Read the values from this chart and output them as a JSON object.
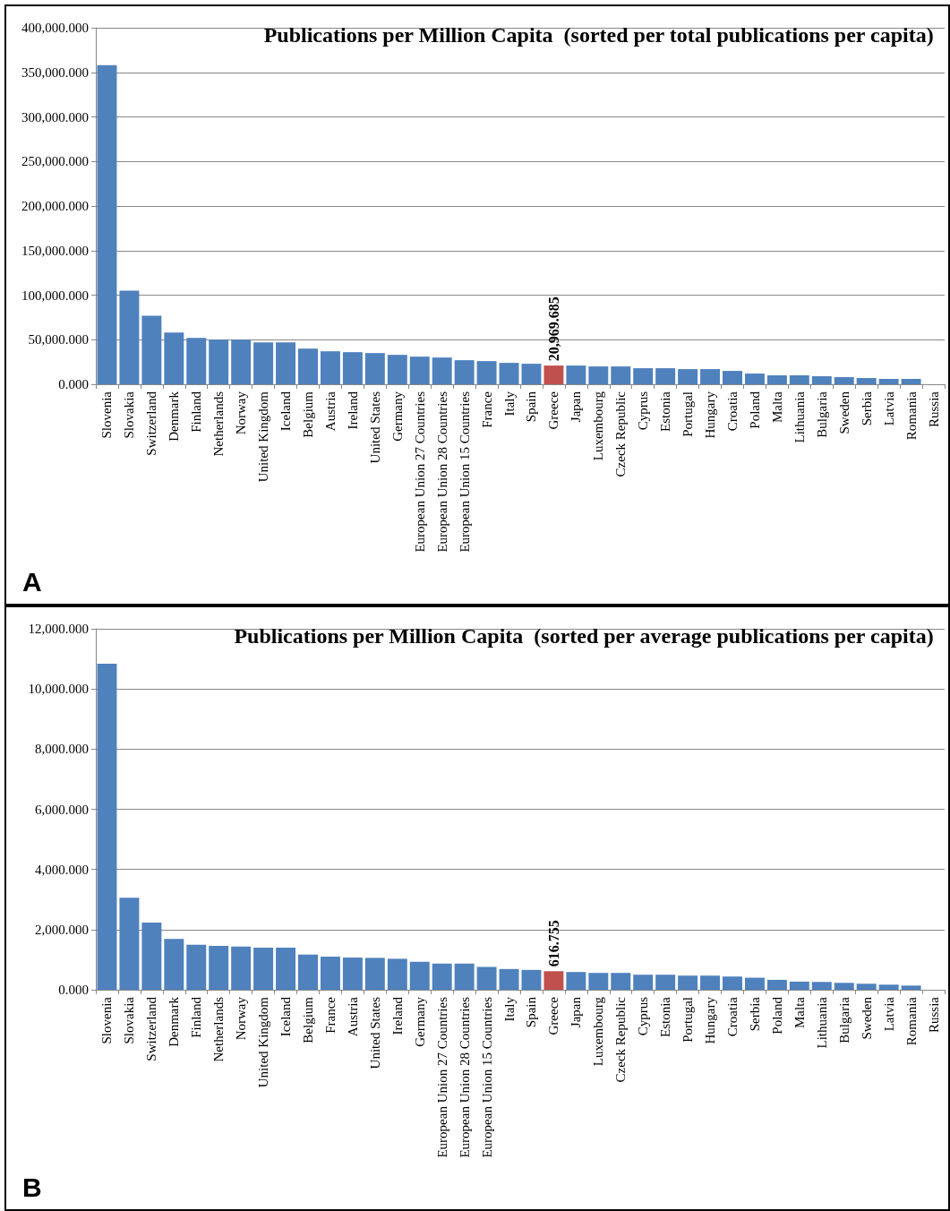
{
  "chart_data": [
    {
      "type": "bar",
      "title": "Publications per Million Capita  (sorted per total publications per capita)",
      "annotations": [
        "A"
      ],
      "categories": [
        "Slovenia",
        "Slovakia",
        "Switzerland",
        "Denmark",
        "Finland",
        "Netherlands",
        "Norway",
        "United Kingdom",
        "Iceland",
        "Belgium",
        "Austria",
        "Ireland",
        "United States",
        "Germany",
        "European Union 27 Countries",
        "European Union 28 Countries",
        "European Union 15 Countries",
        "France",
        "Italy",
        "Spain",
        "Greece",
        "Japan",
        "Luxembourg",
        "Czeck Republic",
        "Cyprus",
        "Estonia",
        "Portugal",
        "Hungary",
        "Croatia",
        "Poland",
        "Malta",
        "Lithuania",
        "Bulgaria",
        "Sweden",
        "Serbia",
        "Latvia",
        "Romania",
        "Russia"
      ],
      "values": [
        358000,
        105000,
        77000,
        58000,
        52000,
        50000,
        50000,
        47000,
        47000,
        40000,
        37000,
        36000,
        35000,
        33000,
        31000,
        30000,
        27000,
        26000,
        24000,
        23000,
        20969.685,
        21000,
        20000,
        20000,
        18000,
        18000,
        17000,
        17000,
        15000,
        12000,
        10000,
        10000,
        9000,
        8000,
        7000,
        6000,
        6000,
        null
      ],
      "colors": [
        "#4f81bd",
        "#4f81bd",
        "#4f81bd",
        "#4f81bd",
        "#4f81bd",
        "#4f81bd",
        "#4f81bd",
        "#4f81bd",
        "#4f81bd",
        "#4f81bd",
        "#4f81bd",
        "#4f81bd",
        "#4f81bd",
        "#4f81bd",
        "#4f81bd",
        "#4f81bd",
        "#4f81bd",
        "#4f81bd",
        "#4f81bd",
        "#4f81bd",
        "#c0504d",
        "#4f81bd",
        "#4f81bd",
        "#4f81bd",
        "#4f81bd",
        "#4f81bd",
        "#4f81bd",
        "#4f81bd",
        "#4f81bd",
        "#4f81bd",
        "#4f81bd",
        "#4f81bd",
        "#4f81bd",
        "#4f81bd",
        "#4f81bd",
        "#4f81bd",
        "#4f81bd",
        "#4f81bd"
      ],
      "value_labels": [
        null,
        null,
        null,
        null,
        null,
        null,
        null,
        null,
        null,
        null,
        null,
        null,
        null,
        null,
        null,
        null,
        null,
        null,
        null,
        null,
        "20,969.685",
        null,
        null,
        null,
        null,
        null,
        null,
        null,
        null,
        null,
        null,
        null,
        null,
        null,
        null,
        null,
        null,
        null
      ],
      "ylim": [
        0,
        400000
      ],
      "yticks": [
        {
          "value": 0,
          "label": "0.000"
        },
        {
          "value": 50000,
          "label": "50,000.000"
        },
        {
          "value": 100000,
          "label": "100,000.000"
        },
        {
          "value": 150000,
          "label": "150,000.000"
        },
        {
          "value": 200000,
          "label": "200,000.000"
        },
        {
          "value": 250000,
          "label": "250,000.000"
        },
        {
          "value": 300000,
          "label": "300,000.000"
        },
        {
          "value": 350000,
          "label": "350,000.000"
        },
        {
          "value": 400000,
          "label": "400,000.000"
        }
      ],
      "grid": "y"
    },
    {
      "type": "bar",
      "title": "Publications per Million Capita  (sorted per average publications per capita)",
      "annotations": [
        "B"
      ],
      "categories": [
        "Slovenia",
        "Slovakia",
        "Switzerland",
        "Denmark",
        "Finland",
        "Netherlands",
        "Norway",
        "United Kingdom",
        "Iceland",
        "Belgium",
        "France",
        "Austria",
        "United States",
        "Ireland",
        "Germany",
        "European Union 27 Countries",
        "European Union 28 Countries",
        "European Union 15 Countries",
        "Italy",
        "Spain",
        "Greece",
        "Japan",
        "Luxembourg",
        "Czeck Republic",
        "Cyprus",
        "Estonia",
        "Portugal",
        "Hungary",
        "Croatia",
        "Serbia",
        "Poland",
        "Malta",
        "Lithuania",
        "Bulgaria",
        "Sweden",
        "Latvia",
        "Romania",
        "Russia"
      ],
      "values": [
        10840,
        3060,
        2230,
        1690,
        1500,
        1460,
        1440,
        1400,
        1400,
        1170,
        1100,
        1070,
        1060,
        1030,
        930,
        870,
        870,
        760,
        690,
        660,
        616.755,
        590,
        560,
        560,
        500,
        500,
        470,
        470,
        440,
        400,
        330,
        270,
        260,
        230,
        200,
        170,
        140,
        null
      ],
      "colors": [
        "#4f81bd",
        "#4f81bd",
        "#4f81bd",
        "#4f81bd",
        "#4f81bd",
        "#4f81bd",
        "#4f81bd",
        "#4f81bd",
        "#4f81bd",
        "#4f81bd",
        "#4f81bd",
        "#4f81bd",
        "#4f81bd",
        "#4f81bd",
        "#4f81bd",
        "#4f81bd",
        "#4f81bd",
        "#4f81bd",
        "#4f81bd",
        "#4f81bd",
        "#c0504d",
        "#4f81bd",
        "#4f81bd",
        "#4f81bd",
        "#4f81bd",
        "#4f81bd",
        "#4f81bd",
        "#4f81bd",
        "#4f81bd",
        "#4f81bd",
        "#4f81bd",
        "#4f81bd",
        "#4f81bd",
        "#4f81bd",
        "#4f81bd",
        "#4f81bd",
        "#4f81bd",
        "#4f81bd"
      ],
      "value_labels": [
        null,
        null,
        null,
        null,
        null,
        null,
        null,
        null,
        null,
        null,
        null,
        null,
        null,
        null,
        null,
        null,
        null,
        null,
        null,
        null,
        "616.755",
        null,
        null,
        null,
        null,
        null,
        null,
        null,
        null,
        null,
        null,
        null,
        null,
        null,
        null,
        null,
        null,
        null
      ],
      "ylim": [
        0,
        12000
      ],
      "yticks": [
        {
          "value": 0,
          "label": "0.000"
        },
        {
          "value": 2000,
          "label": "2,000.000"
        },
        {
          "value": 4000,
          "label": "4,000.000"
        },
        {
          "value": 6000,
          "label": "6,000.000"
        },
        {
          "value": 8000,
          "label": "8,000.000"
        },
        {
          "value": 10000,
          "label": "10,000.000"
        },
        {
          "value": 12000,
          "label": "12,000.000"
        }
      ],
      "grid": "y"
    }
  ]
}
